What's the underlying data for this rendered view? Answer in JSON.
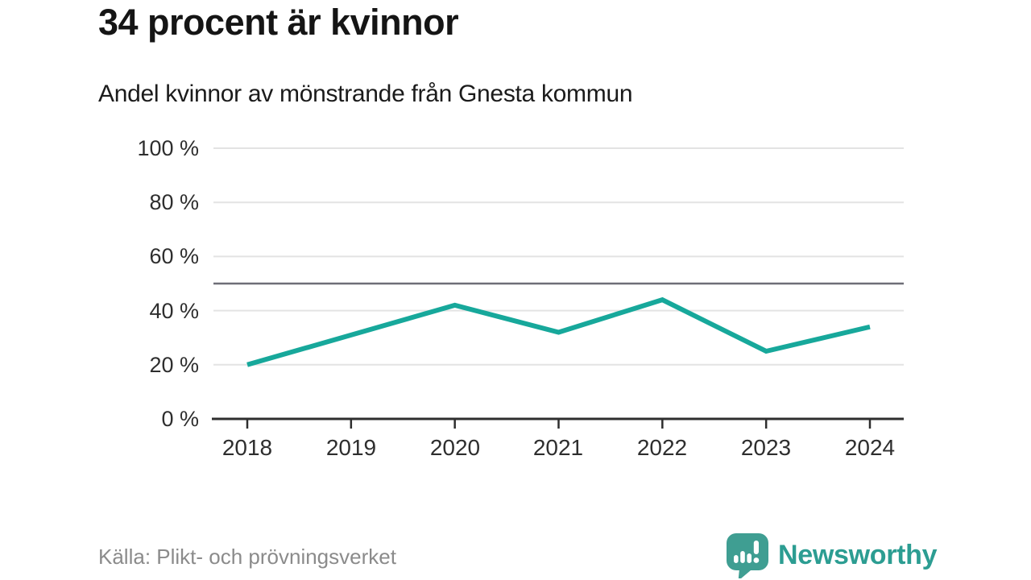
{
  "header": {
    "title": "34 procent är kvinnor",
    "subtitle": "Andel kvinnor av mönstrande från Gnesta kommun"
  },
  "chart_data": {
    "type": "line",
    "title": "34 procent är kvinnor",
    "subtitle": "Andel kvinnor av mönstrande från Gnesta kommun",
    "categories": [
      "2018",
      "2019",
      "2020",
      "2021",
      "2022",
      "2023",
      "2024"
    ],
    "series": [
      {
        "name": "Andel kvinnor av mönstrande",
        "values": [
          20,
          31,
          42,
          32,
          44,
          25,
          34
        ]
      }
    ],
    "unit": "%",
    "ylim": [
      0,
      100
    ],
    "y_ticks": [
      0,
      20,
      40,
      60,
      80,
      100
    ],
    "y_tick_labels": [
      "0 %",
      "20 %",
      "40 %",
      "60 %",
      "80 %",
      "100 %"
    ],
    "reference_line": {
      "value": 50
    },
    "grid": "horizontal",
    "legend": "none",
    "line_color": "#17a89b",
    "grid_color": "#e3e3e3",
    "reference_line_color": "#6e6e77",
    "axis_color": "#2e2e2e"
  },
  "footer": {
    "source": "Källa: Plikt- och prövningsverket",
    "brand": "Newsworthy",
    "brand_color": "#2c9d92",
    "brand_icon": "bar-chart-speech-bubble",
    "brand_icon_color": "#3f9e92"
  }
}
